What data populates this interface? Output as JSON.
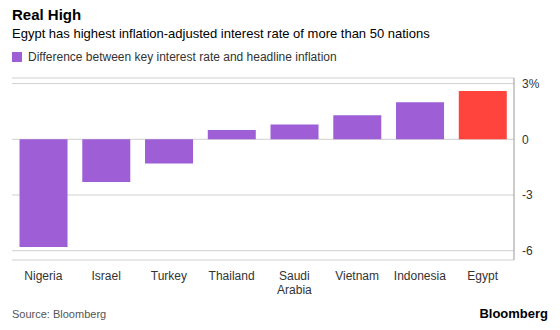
{
  "chart_data": {
    "type": "bar",
    "title": "Real High",
    "subtitle": "Egypt has highest inflation-adjusted interest rate of more than 50 nations",
    "categories": [
      "Nigeria",
      "Israel",
      "Turkey",
      "Thailand",
      "Saudi Arabia",
      "Vietnam",
      "Indonesia",
      "Egypt"
    ],
    "series": [
      {
        "name": "Difference between key interest rate and headline inflation",
        "color": "#9e5fd6",
        "colors": [
          "#9e5fd6",
          "#9e5fd6",
          "#9e5fd6",
          "#9e5fd6",
          "#9e5fd6",
          "#9e5fd6",
          "#9e5fd6",
          "#ff433d"
        ],
        "values": [
          -5.8,
          -2.3,
          -1.3,
          0.5,
          0.8,
          1.3,
          2.0,
          2.6
        ]
      }
    ],
    "ylim": [
      -6.5,
      3.3
    ],
    "yticks": [
      {
        "value": 3,
        "label": "3%"
      },
      0,
      -3,
      -6
    ],
    "grid": true,
    "source": "Source: Bloomberg",
    "credit": "Bloomberg"
  }
}
